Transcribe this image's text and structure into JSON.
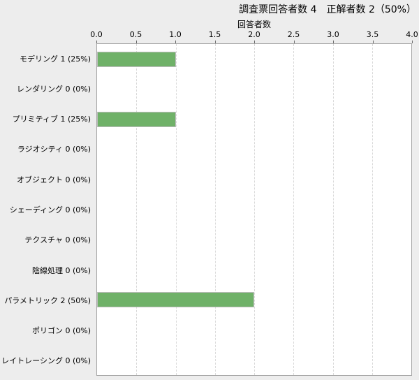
{
  "chart_data": {
    "type": "bar",
    "orientation": "horizontal",
    "title": "調査票回答者数 4　正解者数 2（50%）",
    "xlabel": "回答者数",
    "categories": [
      "モデリング",
      "レンダリング",
      "プリミティブ",
      "ラジオシティ",
      "オブジェクト",
      "シェーディング",
      "テクスチャ",
      "陰線処理",
      "パラメトリック",
      "ポリゴン",
      "レイトレーシング"
    ],
    "values": [
      1,
      0,
      1,
      0,
      0,
      0,
      0,
      0,
      2,
      0,
      0
    ],
    "percent_labels": [
      "25%",
      "0%",
      "25%",
      "0%",
      "0%",
      "0%",
      "0%",
      "0%",
      "50%",
      "0%",
      "0%"
    ],
    "row_display_labels": [
      "モデリング 1 (25%)",
      "レンダリング 0 (0%)",
      "プリミティブ 1 (25%)",
      "ラジオシティ 0 (0%)",
      "オブジェクト 0 (0%)",
      "シェーディング 0 (0%)",
      "テクスチャ 0 (0%)",
      "陰線処理 0 (0%)",
      "パラメトリック 2 (50%)",
      "ポリゴン 0 (0%)",
      "レイトレーシング 0 (0%)"
    ],
    "xlim": [
      0,
      4
    ],
    "xticks": [
      0.0,
      0.5,
      1.0,
      1.5,
      2.0,
      2.5,
      3.0,
      3.5,
      4.0
    ],
    "gridlines": [
      0.5,
      1.0,
      1.5,
      2.0,
      2.5,
      3.0,
      3.5
    ],
    "grid": "vertical-dashed",
    "legend": "none"
  },
  "colors": {
    "page_background": "#ededed",
    "plot_background": "#ffffff",
    "plot_border": "#a6a6a6",
    "gridline": "#d9d9d9",
    "bar_fill": "#6fb168",
    "bar_border": "#bdbdbd",
    "text": "#000000"
  }
}
